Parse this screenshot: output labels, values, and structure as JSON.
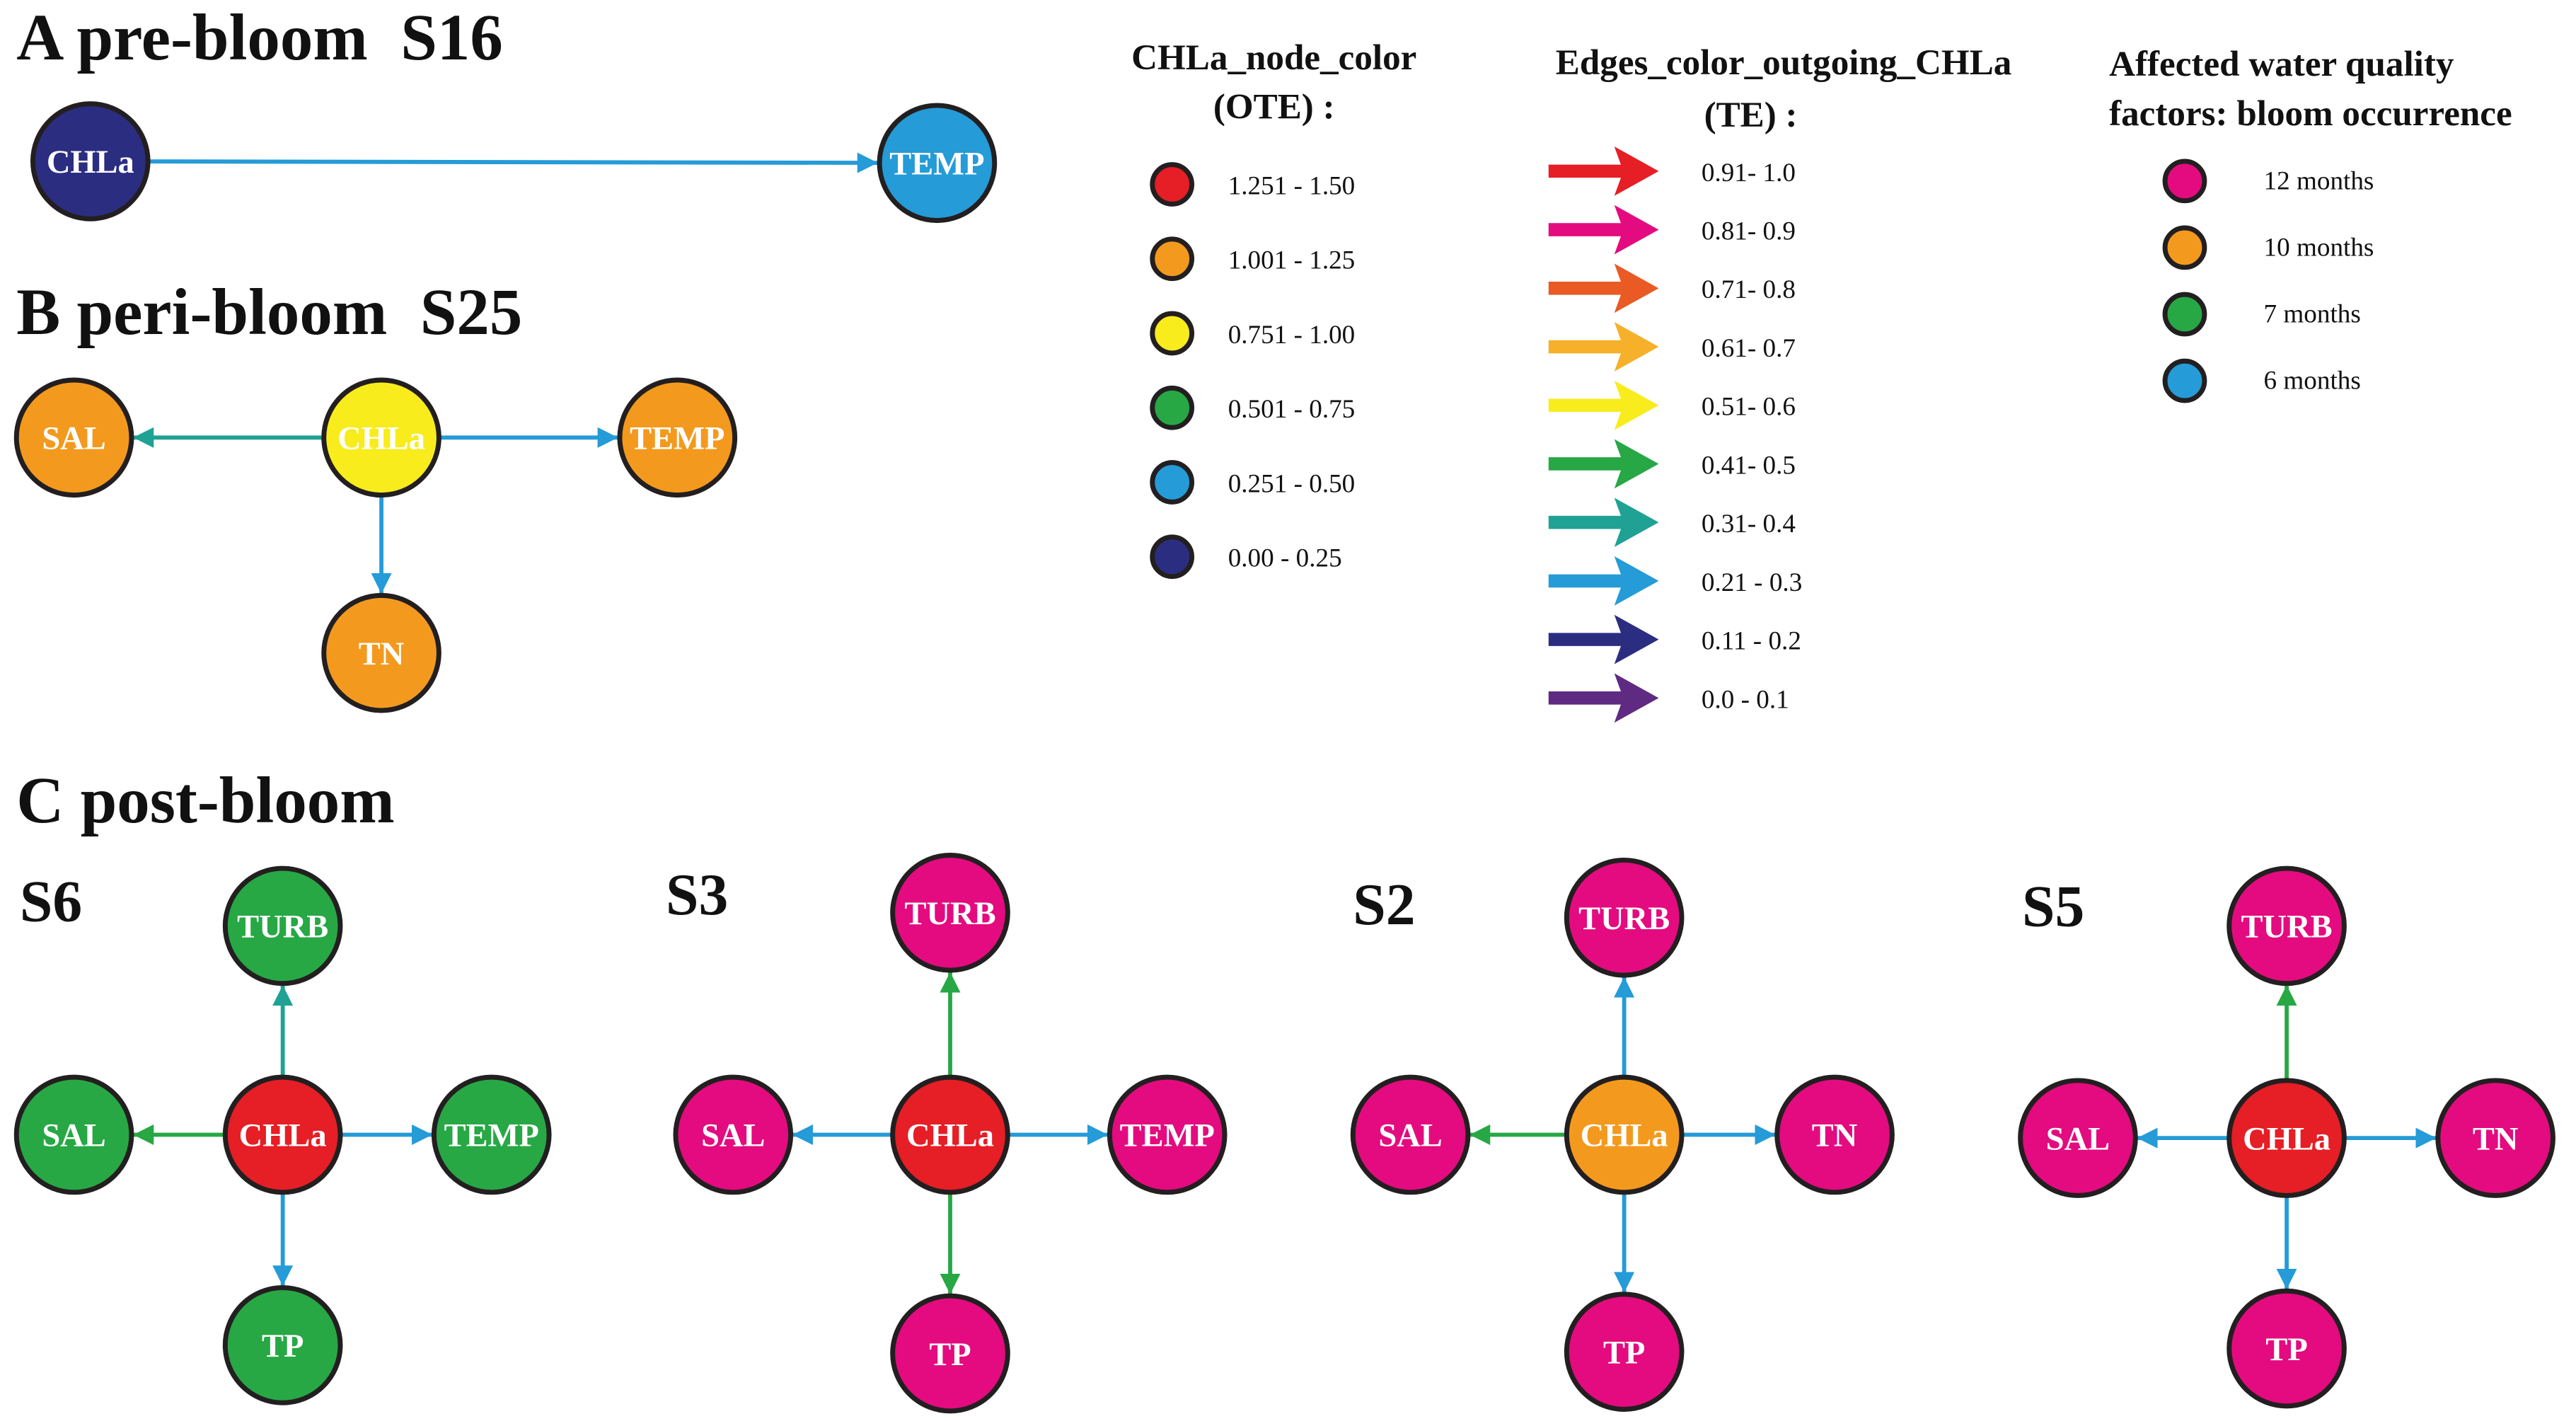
{
  "colors": {
    "red": "#e61e25",
    "orange": "#f39a1e",
    "yellow": "#f8ec1d",
    "green": "#27a845",
    "blue": "#259bd7",
    "navy": "#2b2e80",
    "magenta": "#e30b7f",
    "orangered": "#e95a24",
    "gold": "#f6b02a",
    "teal": "#1fa294",
    "purple": "#5e2a82"
  },
  "titles": {
    "a": "A pre-bloom  S16",
    "b": "B peri-bloom  S25",
    "c": "C post-bloom"
  },
  "legend": {
    "node_title_1": "CHLa_node_color",
    "node_title_2": "(OTE) :",
    "node_items": [
      {
        "label": "1.251 - 1.50",
        "color": "red"
      },
      {
        "label": "1.001 - 1.25",
        "color": "orange"
      },
      {
        "label": "0.751 - 1.00",
        "color": "yellow"
      },
      {
        "label": "0.501 - 0.75",
        "color": "green"
      },
      {
        "label": "0.251 - 0.50",
        "color": "blue"
      },
      {
        "label": "0.00 - 0.25",
        "color": "navy"
      }
    ],
    "edge_title_1": "Edges_color_outgoing_CHLa",
    "edge_title_2": "(TE) :",
    "edge_items": [
      {
        "label": "0.91- 1.0",
        "color": "red"
      },
      {
        "label": "0.81- 0.9",
        "color": "magenta"
      },
      {
        "label": "0.71- 0.8",
        "color": "orangered"
      },
      {
        "label": "0.61- 0.7",
        "color": "gold"
      },
      {
        "label": "0.51- 0.6",
        "color": "yellow"
      },
      {
        "label": "0.41- 0.5",
        "color": "green"
      },
      {
        "label": "0.31- 0.4",
        "color": "teal"
      },
      {
        "label": "0.21 - 0.3",
        "color": "blue"
      },
      {
        "label": "0.11 - 0.2",
        "color": "navy"
      },
      {
        "label": "0.0 - 0.1",
        "color": "purple"
      }
    ],
    "factor_title_1": "Affected water quality",
    "factor_title_2": "factors: bloom occurrence",
    "factor_items": [
      {
        "label": "12 months",
        "color": "magenta"
      },
      {
        "label": "10 months",
        "color": "orange"
      },
      {
        "label": "7 months",
        "color": "green"
      },
      {
        "label": "6 months",
        "color": "blue"
      }
    ]
  },
  "graphs": [
    {
      "id": "S16",
      "label": "",
      "center": {
        "label": "CHLa",
        "color": "navy"
      },
      "targets": [
        {
          "label": "TEMP",
          "color": "blue",
          "edge": "blue"
        }
      ]
    },
    {
      "id": "S25",
      "label": "",
      "center": {
        "label": "CHLa",
        "color": "yellow"
      },
      "targets": [
        {
          "label": "SAL",
          "color": "orange",
          "edge": "teal"
        },
        {
          "label": "TEMP",
          "color": "orange",
          "edge": "blue"
        },
        {
          "label": "TN",
          "color": "orange",
          "edge": "blue"
        }
      ]
    },
    {
      "id": "S6",
      "label": "S6",
      "center": {
        "label": "CHLa",
        "color": "red"
      },
      "targets": [
        {
          "label": "TURB",
          "color": "green",
          "edge": "teal"
        },
        {
          "label": "SAL",
          "color": "green",
          "edge": "green"
        },
        {
          "label": "TEMP",
          "color": "green",
          "edge": "blue"
        },
        {
          "label": "TP",
          "color": "green",
          "edge": "blue"
        }
      ]
    },
    {
      "id": "S3",
      "label": "S3",
      "center": {
        "label": "CHLa",
        "color": "red"
      },
      "targets": [
        {
          "label": "TURB",
          "color": "magenta",
          "edge": "green"
        },
        {
          "label": "SAL",
          "color": "magenta",
          "edge": "blue"
        },
        {
          "label": "TEMP",
          "color": "magenta",
          "edge": "blue"
        },
        {
          "label": "TP",
          "color": "magenta",
          "edge": "green"
        }
      ]
    },
    {
      "id": "S2",
      "label": "S2",
      "center": {
        "label": "CHLa",
        "color": "orange"
      },
      "targets": [
        {
          "label": "TURB",
          "color": "magenta",
          "edge": "blue"
        },
        {
          "label": "SAL",
          "color": "magenta",
          "edge": "green"
        },
        {
          "label": "TN",
          "color": "magenta",
          "edge": "blue"
        },
        {
          "label": "TP",
          "color": "magenta",
          "edge": "blue"
        }
      ]
    },
    {
      "id": "S5",
      "label": "S5",
      "center": {
        "label": "CHLa",
        "color": "red"
      },
      "targets": [
        {
          "label": "TURB",
          "color": "magenta",
          "edge": "green"
        },
        {
          "label": "SAL",
          "color": "magenta",
          "edge": "blue"
        },
        {
          "label": "TN",
          "color": "magenta",
          "edge": "blue"
        },
        {
          "label": "TP",
          "color": "magenta",
          "edge": "blue"
        }
      ]
    }
  ]
}
